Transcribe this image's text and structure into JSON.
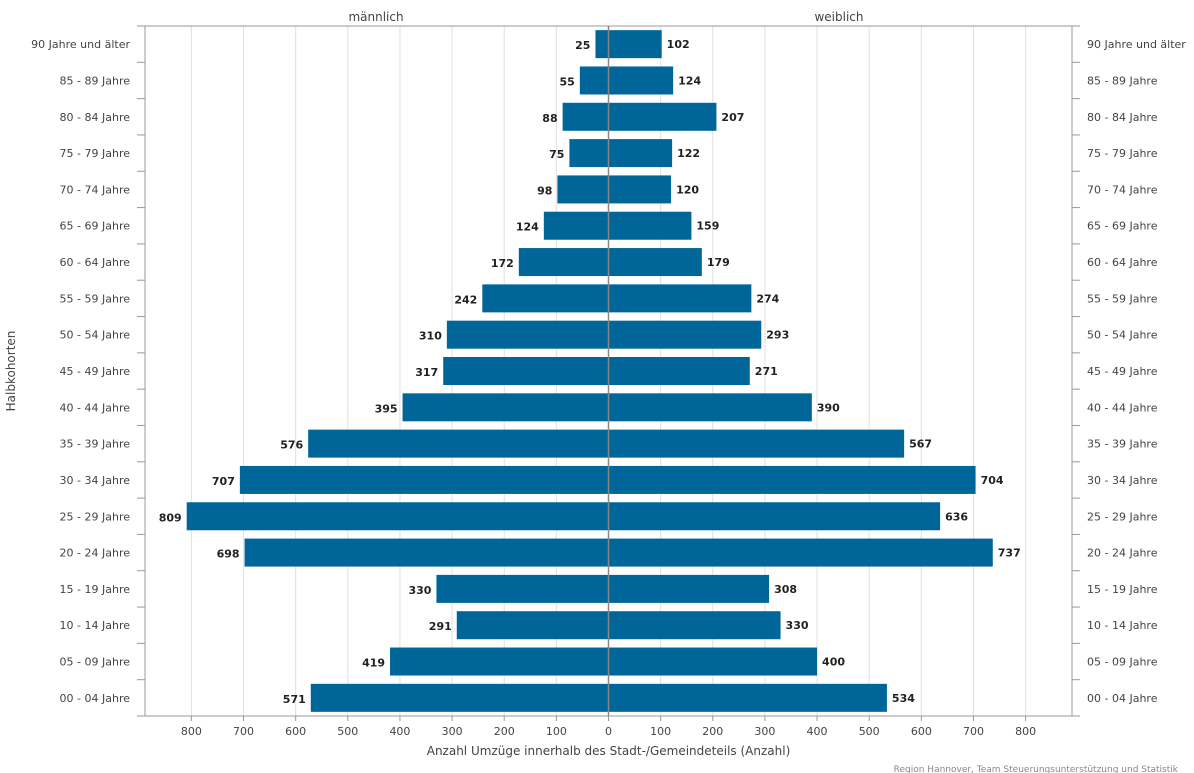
{
  "chart_data": {
    "type": "bar",
    "orientation": "horizontal-population-pyramid",
    "categories": [
      "90 Jahre und älter",
      "85 - 89 Jahre",
      "80 - 84 Jahre",
      "75 - 79 Jahre",
      "70 - 74 Jahre",
      "65 - 69 Jahre",
      "60 - 64 Jahre",
      "55 - 59 Jahre",
      "50 - 54 Jahre",
      "45 - 49 Jahre",
      "40 - 44 Jahre",
      "35 - 39 Jahre",
      "30 - 34 Jahre",
      "25 - 29 Jahre",
      "20 - 24 Jahre",
      "15 - 19 Jahre",
      "10 - 14 Jahre",
      "05 - 09 Jahre",
      "00 - 04 Jahre"
    ],
    "series": [
      {
        "name": "männlich",
        "side": "left",
        "values": [
          25,
          55,
          88,
          75,
          98,
          124,
          172,
          242,
          310,
          317,
          395,
          576,
          707,
          809,
          698,
          330,
          291,
          419,
          571
        ]
      },
      {
        "name": "weiblich",
        "side": "right",
        "values": [
          102,
          124,
          207,
          122,
          120,
          159,
          179,
          274,
          293,
          271,
          390,
          567,
          704,
          636,
          737,
          308,
          330,
          400,
          534
        ]
      }
    ],
    "xlim": [
      -890,
      890
    ],
    "x_ticks": [
      800,
      700,
      600,
      500,
      400,
      300,
      200,
      100,
      0,
      100,
      200,
      300,
      400,
      500,
      600,
      700,
      800
    ],
    "xlabel": "Anzahl Umzüge innerhalb des Stadt-/Gemeindeteils (Anzahl)",
    "ylabel": "Halbkohorten",
    "grid": true,
    "colors": {
      "bar": "#006699",
      "grid": "#e0e0e0",
      "axis": "#999999"
    }
  },
  "source": "Region Hannover, Team Steuerungsunterstützung und Statistik"
}
